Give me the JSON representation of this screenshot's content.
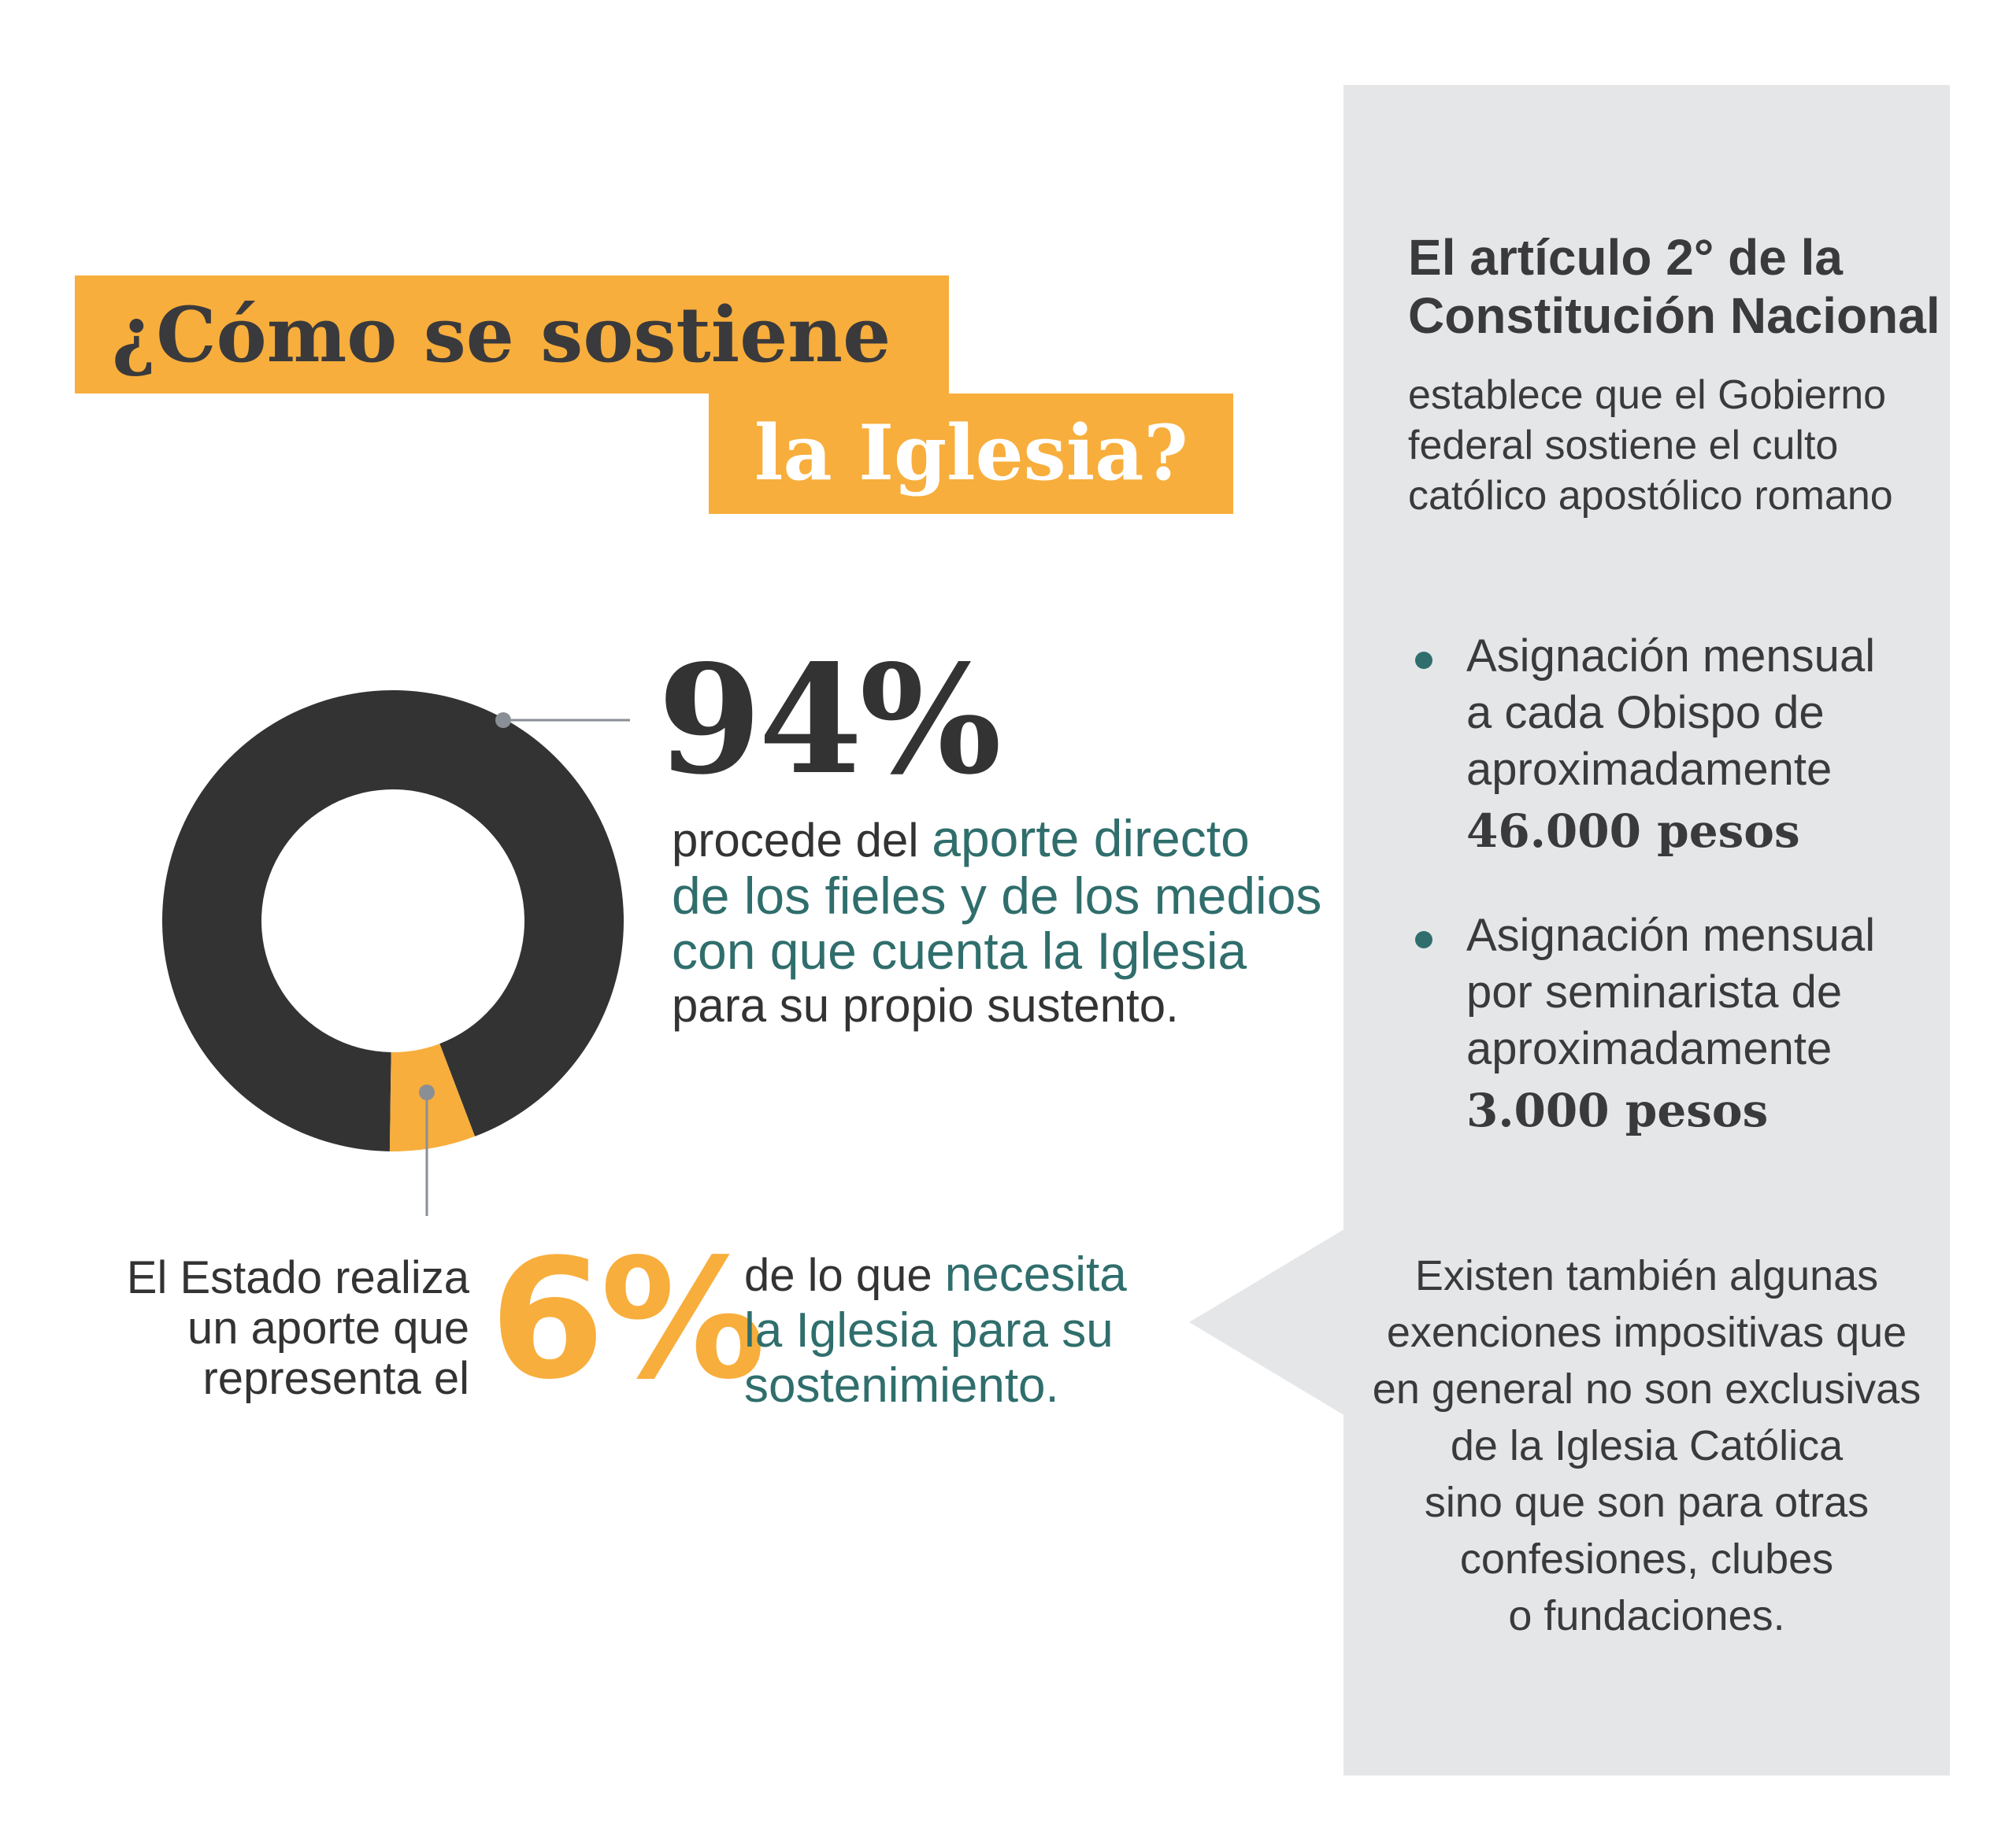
{
  "title": {
    "line1": "¿Cómo se sostiene",
    "line2": "la Iglesia?"
  },
  "main": {
    "big_value": "94%",
    "big_desc_prefix": "procede del ",
    "big_desc_highlight_1": "aporte directo",
    "big_desc_highlight_2": "de los fieles y de los medios",
    "big_desc_highlight_3": "con que cuenta la Iglesia",
    "big_desc_suffix": "para su propio sustento.",
    "state_line1": "El Estado realiza",
    "state_line2": "un aporte que",
    "state_line3": "representa el",
    "small_value": "6%",
    "state_right_prefix": "de lo que ",
    "state_right_highlight_1": "necesita",
    "state_right_highlight_2": "la Iglesia para su",
    "state_right_highlight_3": "sostenimiento."
  },
  "chart_data": {
    "type": "pie",
    "categories": [
      "aporte directo de los fieles y de los medios con que cuenta la Iglesia",
      "El Estado"
    ],
    "values": [
      94,
      6
    ],
    "units": "%",
    "colors": [
      "#333334",
      "#f8ae3c"
    ]
  },
  "panel": {
    "title_line1": "El artículo 2° de la",
    "title_line2": "Constitución Nacional",
    "sub_line1": "establece que el Gobierno",
    "sub_line2": "federal sostiene el culto",
    "sub_line3": "católico apostólico romano",
    "bullets": [
      {
        "line1": "Asignación mensual",
        "line2": "a cada Obispo de",
        "line3": "aproximadamente",
        "amount": "46.000 pesos"
      },
      {
        "line1": "Asignación mensual",
        "line2": "por seminarista de",
        "line3": "aproximadamente",
        "amount": "3.000 pesos"
      }
    ],
    "exemptions": [
      "Existen también algunas",
      "exenciones impositivas que",
      "en general no son exclusivas",
      "de la Iglesia Católica",
      "sino que son para otras",
      "confesiones, clubes",
      "o fundaciones."
    ]
  },
  "colors": {
    "accent": "#f8ae3c",
    "dark": "#333334",
    "teal": "#2f6e6c",
    "panel": "#e5e6e8"
  }
}
